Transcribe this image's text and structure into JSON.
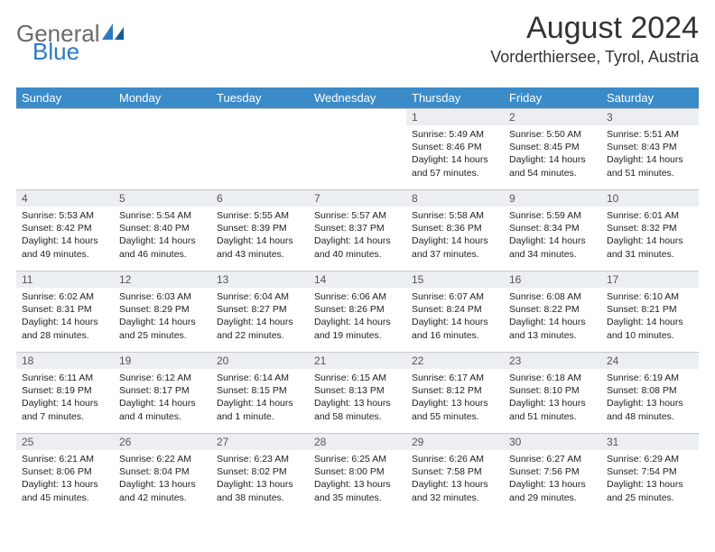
{
  "logo": {
    "text1": "General",
    "text2": "Blue"
  },
  "title": "August 2024",
  "location": "Vorderthiersee, Tyrol, Austria",
  "colors": {
    "header_bg": "#3b8bc9",
    "header_fg": "#ffffff",
    "daynum_bg": "#eceff1",
    "border": "#c9c9c9",
    "logo_gray": "#6a6a6a",
    "logo_blue": "#2e7ac0"
  },
  "daynames": [
    "Sunday",
    "Monday",
    "Tuesday",
    "Wednesday",
    "Thursday",
    "Friday",
    "Saturday"
  ],
  "weeks": [
    [
      null,
      null,
      null,
      null,
      {
        "n": "1",
        "sr": "5:49 AM",
        "ss": "8:46 PM",
        "dl": "14 hours and 57 minutes."
      },
      {
        "n": "2",
        "sr": "5:50 AM",
        "ss": "8:45 PM",
        "dl": "14 hours and 54 minutes."
      },
      {
        "n": "3",
        "sr": "5:51 AM",
        "ss": "8:43 PM",
        "dl": "14 hours and 51 minutes."
      }
    ],
    [
      {
        "n": "4",
        "sr": "5:53 AM",
        "ss": "8:42 PM",
        "dl": "14 hours and 49 minutes."
      },
      {
        "n": "5",
        "sr": "5:54 AM",
        "ss": "8:40 PM",
        "dl": "14 hours and 46 minutes."
      },
      {
        "n": "6",
        "sr": "5:55 AM",
        "ss": "8:39 PM",
        "dl": "14 hours and 43 minutes."
      },
      {
        "n": "7",
        "sr": "5:57 AM",
        "ss": "8:37 PM",
        "dl": "14 hours and 40 minutes."
      },
      {
        "n": "8",
        "sr": "5:58 AM",
        "ss": "8:36 PM",
        "dl": "14 hours and 37 minutes."
      },
      {
        "n": "9",
        "sr": "5:59 AM",
        "ss": "8:34 PM",
        "dl": "14 hours and 34 minutes."
      },
      {
        "n": "10",
        "sr": "6:01 AM",
        "ss": "8:32 PM",
        "dl": "14 hours and 31 minutes."
      }
    ],
    [
      {
        "n": "11",
        "sr": "6:02 AM",
        "ss": "8:31 PM",
        "dl": "14 hours and 28 minutes."
      },
      {
        "n": "12",
        "sr": "6:03 AM",
        "ss": "8:29 PM",
        "dl": "14 hours and 25 minutes."
      },
      {
        "n": "13",
        "sr": "6:04 AM",
        "ss": "8:27 PM",
        "dl": "14 hours and 22 minutes."
      },
      {
        "n": "14",
        "sr": "6:06 AM",
        "ss": "8:26 PM",
        "dl": "14 hours and 19 minutes."
      },
      {
        "n": "15",
        "sr": "6:07 AM",
        "ss": "8:24 PM",
        "dl": "14 hours and 16 minutes."
      },
      {
        "n": "16",
        "sr": "6:08 AM",
        "ss": "8:22 PM",
        "dl": "14 hours and 13 minutes."
      },
      {
        "n": "17",
        "sr": "6:10 AM",
        "ss": "8:21 PM",
        "dl": "14 hours and 10 minutes."
      }
    ],
    [
      {
        "n": "18",
        "sr": "6:11 AM",
        "ss": "8:19 PM",
        "dl": "14 hours and 7 minutes."
      },
      {
        "n": "19",
        "sr": "6:12 AM",
        "ss": "8:17 PM",
        "dl": "14 hours and 4 minutes."
      },
      {
        "n": "20",
        "sr": "6:14 AM",
        "ss": "8:15 PM",
        "dl": "14 hours and 1 minute."
      },
      {
        "n": "21",
        "sr": "6:15 AM",
        "ss": "8:13 PM",
        "dl": "13 hours and 58 minutes."
      },
      {
        "n": "22",
        "sr": "6:17 AM",
        "ss": "8:12 PM",
        "dl": "13 hours and 55 minutes."
      },
      {
        "n": "23",
        "sr": "6:18 AM",
        "ss": "8:10 PM",
        "dl": "13 hours and 51 minutes."
      },
      {
        "n": "24",
        "sr": "6:19 AM",
        "ss": "8:08 PM",
        "dl": "13 hours and 48 minutes."
      }
    ],
    [
      {
        "n": "25",
        "sr": "6:21 AM",
        "ss": "8:06 PM",
        "dl": "13 hours and 45 minutes."
      },
      {
        "n": "26",
        "sr": "6:22 AM",
        "ss": "8:04 PM",
        "dl": "13 hours and 42 minutes."
      },
      {
        "n": "27",
        "sr": "6:23 AM",
        "ss": "8:02 PM",
        "dl": "13 hours and 38 minutes."
      },
      {
        "n": "28",
        "sr": "6:25 AM",
        "ss": "8:00 PM",
        "dl": "13 hours and 35 minutes."
      },
      {
        "n": "29",
        "sr": "6:26 AM",
        "ss": "7:58 PM",
        "dl": "13 hours and 32 minutes."
      },
      {
        "n": "30",
        "sr": "6:27 AM",
        "ss": "7:56 PM",
        "dl": "13 hours and 29 minutes."
      },
      {
        "n": "31",
        "sr": "6:29 AM",
        "ss": "7:54 PM",
        "dl": "13 hours and 25 minutes."
      }
    ]
  ],
  "labels": {
    "sunrise": "Sunrise:",
    "sunset": "Sunset:",
    "daylight": "Daylight:"
  }
}
